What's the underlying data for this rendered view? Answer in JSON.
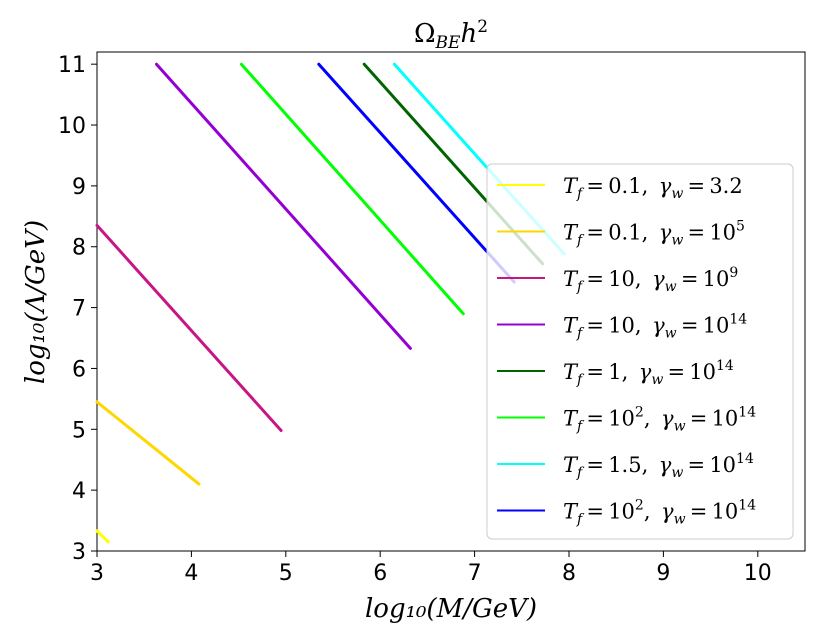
{
  "chart_data": {
    "type": "line",
    "title": "Ω_BE h²",
    "title_parts": {
      "omega": "Ω",
      "sub": "BE",
      "h": "h",
      "sup": "2"
    },
    "xlabel": "log₁₀(M/GeV)",
    "ylabel": "log₁₀(Λ/GeV)",
    "xlim": [
      3,
      10.5
    ],
    "ylim": [
      3,
      11.2
    ],
    "xticks": [
      "3",
      "4",
      "5",
      "6",
      "7",
      "8",
      "9",
      "10"
    ],
    "yticks": [
      "3",
      "4",
      "5",
      "6",
      "7",
      "8",
      "9",
      "10",
      "11"
    ],
    "legend_position": "right",
    "series": [
      {
        "name": "T_f = 0.1, γ_w = 3.2",
        "legend": {
          "T": "T",
          "Tsub": "f",
          "Tval": "0.1",
          "Tsup": "",
          "g": "γ",
          "gsub": "w",
          "gval": "3.2",
          "gsup": ""
        },
        "color": "#ffff00",
        "x": [
          3.0,
          3.12
        ],
        "y": [
          3.33,
          3.15
        ]
      },
      {
        "name": "T_f = 0.1, γ_w = 10^5",
        "legend": {
          "T": "T",
          "Tsub": "f",
          "Tval": "0.1",
          "Tsup": "",
          "g": "γ",
          "gsub": "w",
          "gval": "10",
          "gsup": "5"
        },
        "color": "#ffd700",
        "x": [
          3.0,
          4.08
        ],
        "y": [
          5.45,
          4.1
        ]
      },
      {
        "name": "T_f = 10, γ_w = 10^9",
        "legend": {
          "T": "T",
          "Tsub": "f",
          "Tval": "10",
          "Tsup": "",
          "g": "γ",
          "gsub": "w",
          "gval": "10",
          "gsup": "9"
        },
        "color": "#c71585",
        "x": [
          3.0,
          4.95
        ],
        "y": [
          8.35,
          4.98
        ]
      },
      {
        "name": "T_f = 10, γ_w = 10^14",
        "legend": {
          "T": "T",
          "Tsub": "f",
          "Tval": "10",
          "Tsup": "",
          "g": "γ",
          "gsub": "w",
          "gval": "10",
          "gsup": "14"
        },
        "color": "#9400d3",
        "x": [
          3.63,
          6.32
        ],
        "y": [
          11.0,
          6.33
        ]
      },
      {
        "name": "T_f = 1, γ_w = 10^14",
        "legend": {
          "T": "T",
          "Tsub": "f",
          "Tval": "1",
          "Tsup": "",
          "g": "γ",
          "gsub": "w",
          "gval": "10",
          "gsup": "14"
        },
        "color": "#006400",
        "x": [
          5.83,
          7.72
        ],
        "y": [
          11.0,
          7.72
        ]
      },
      {
        "name": "T_f = 10^2, γ_w = 10^14",
        "legend": {
          "T": "T",
          "Tsub": "f",
          "Tval": "10",
          "Tsup": "2",
          "g": "γ",
          "gsub": "w",
          "gval": "10",
          "gsup": "14"
        },
        "color": "#00ff00",
        "x": [
          4.53,
          6.88
        ],
        "y": [
          11.0,
          6.9
        ]
      },
      {
        "name": "T_f = 1.5, γ_w = 10^14",
        "legend": {
          "T": "T",
          "Tsub": "f",
          "Tval": "1.5",
          "Tsup": "",
          "g": "γ",
          "gsub": "w",
          "gval": "10",
          "gsup": "14"
        },
        "color": "#00ffff",
        "x": [
          6.15,
          7.95
        ],
        "y": [
          11.0,
          7.88
        ]
      },
      {
        "name": "T_f = 10^2, γ_w = 10^14",
        "legend": {
          "T": "T",
          "Tsub": "f",
          "Tval": "10",
          "Tsup": "2",
          "g": "γ",
          "gsub": "w",
          "gval": "10",
          "gsup": "14"
        },
        "color": "#0000ff",
        "x": [
          5.35,
          7.42
        ],
        "y": [
          11.0,
          7.42
        ]
      }
    ]
  }
}
